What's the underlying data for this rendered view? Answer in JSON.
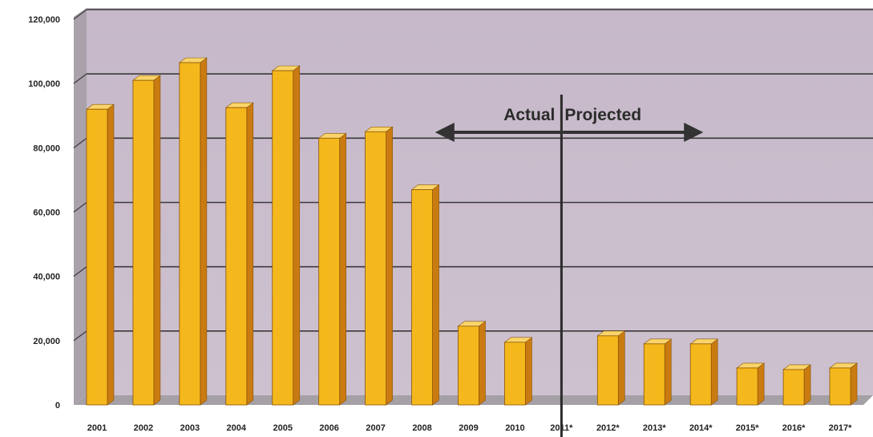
{
  "chart_data": {
    "type": "bar",
    "categories": [
      "2001",
      "2002",
      "2003",
      "2004",
      "2005",
      "2006",
      "2007",
      "2008",
      "2009",
      "2010",
      "2011*",
      "2012*",
      "2013*",
      "2014*",
      "2015*",
      "2016*",
      "2017*"
    ],
    "values": [
      92000,
      101000,
      106500,
      92500,
      104000,
      83000,
      85000,
      67000,
      24500,
      19500,
      null,
      21500,
      19000,
      19000,
      11500,
      11000,
      11500
    ],
    "title": "",
    "xlabel": "",
    "ylabel": "",
    "ylim": [
      0,
      120000
    ],
    "yticks": [
      "0",
      "20,000",
      "40,000",
      "60,000",
      "80,000",
      "100,000",
      "120,000"
    ],
    "grid": true,
    "legend": "none",
    "bar_color": "#f5b81c",
    "bar_side_color": "#c97b12",
    "bar_top_color": "#f9d46a",
    "wall_color": "#c9bccc",
    "floor_color": "#a6a1a6",
    "annotations": {
      "actual_label": "Actual",
      "projected_label": "Projected",
      "divider_after_category": "2010"
    }
  }
}
